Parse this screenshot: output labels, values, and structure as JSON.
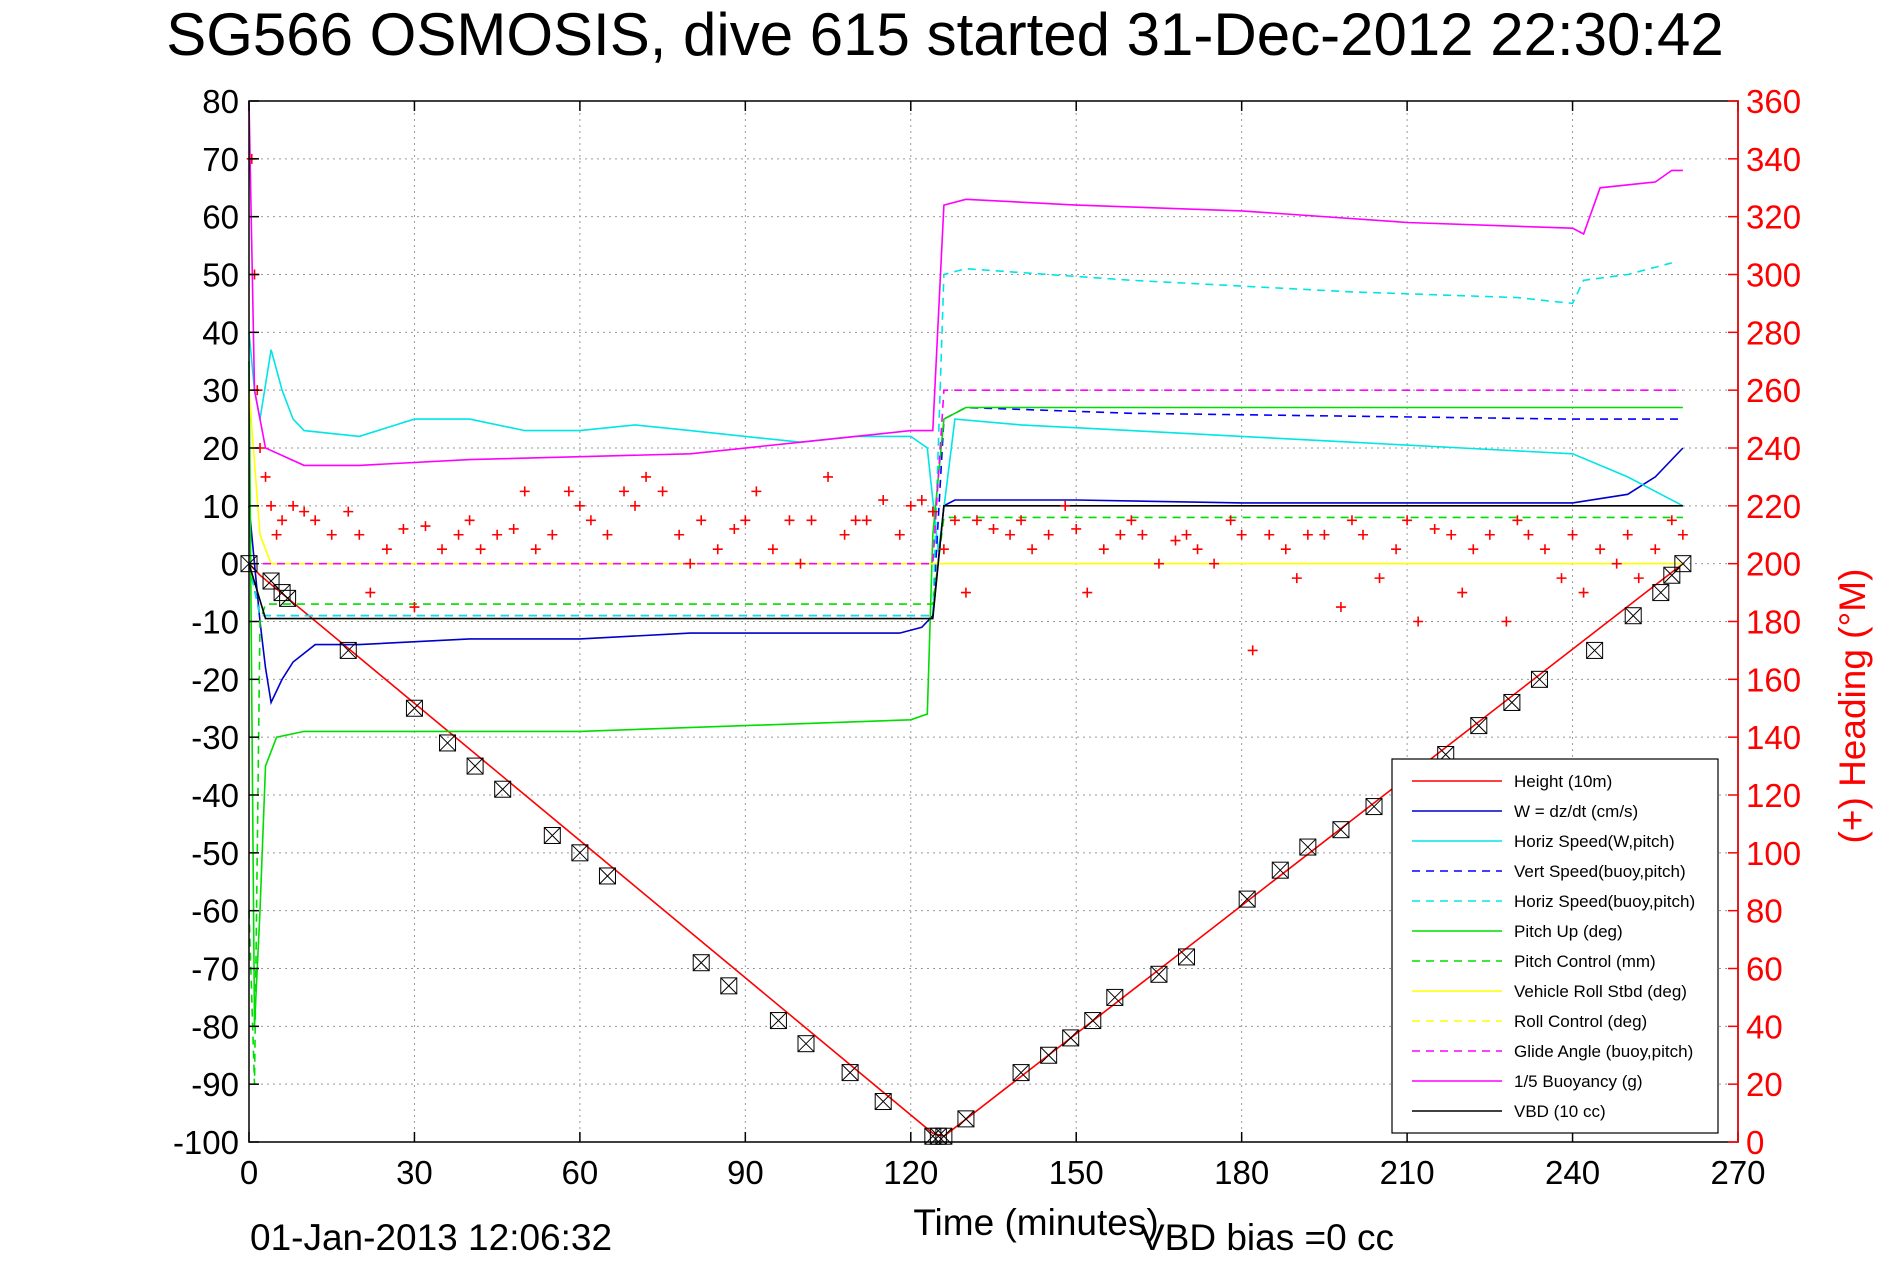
{
  "chart_data": {
    "type": "line",
    "title": "SG566 OSMOSIS, dive 615 started 31-Dec-2012 22:30:42",
    "xlabel": "Time (minutes)",
    "ylabel_right": "(+) Heading (°M)",
    "xlim": [
      0,
      270
    ],
    "ylim": [
      -100,
      80
    ],
    "ylim_right": [
      0,
      360
    ],
    "x_ticks": [
      "0",
      "30",
      "60",
      "90",
      "120",
      "150",
      "180",
      "210",
      "240",
      "270"
    ],
    "y_ticks": [
      "-100",
      "-90",
      "-80",
      "-70",
      "-60",
      "-50",
      "-40",
      "-30",
      "-20",
      "-10",
      "0",
      "10",
      "20",
      "30",
      "40",
      "50",
      "60",
      "70",
      "80"
    ],
    "y_ticks_right": [
      "0",
      "20",
      "40",
      "60",
      "80",
      "100",
      "120",
      "140",
      "160",
      "180",
      "200",
      "220",
      "240",
      "260",
      "280",
      "300",
      "320",
      "340",
      "360"
    ],
    "grid": true,
    "legend_position": "bottom-right",
    "footer_left": "01-Jan-2013 12:06:32",
    "footer_right": "VBD bias =0 cc",
    "series": [
      {
        "name": "Height (10m)",
        "color": "#ff0000",
        "style": "solid",
        "x": [
          0,
          2,
          124,
          126,
          260
        ],
        "y": [
          0,
          -2,
          -98.5,
          -99,
          0
        ]
      },
      {
        "name": "W = dz/dt (cm/s)",
        "color": "#0000cc",
        "style": "solid",
        "x": [
          0,
          1,
          2,
          3,
          4,
          6,
          8,
          12,
          20,
          40,
          60,
          80,
          100,
          110,
          118,
          122,
          124,
          126,
          128,
          135,
          150,
          180,
          210,
          240,
          250,
          255,
          260
        ],
        "y": [
          10,
          0,
          -10,
          -18,
          -24,
          -20,
          -17,
          -14,
          -14,
          -13,
          -13,
          -12,
          -12,
          -12,
          -12,
          -11,
          -9,
          10,
          11,
          11,
          11,
          10.5,
          10.5,
          10.5,
          12,
          15,
          20
        ]
      },
      {
        "name": "Horiz Speed(W,pitch)",
        "color": "#00e5e5",
        "style": "solid",
        "x": [
          0,
          1,
          2,
          4,
          6,
          8,
          10,
          20,
          30,
          40,
          50,
          60,
          70,
          80,
          90,
          100,
          110,
          120,
          123,
          125,
          128,
          140,
          160,
          180,
          200,
          220,
          240,
          250,
          260
        ],
        "y": [
          40,
          30,
          25,
          37,
          30,
          25,
          23,
          22,
          25,
          25,
          23,
          23,
          24,
          23,
          22,
          21,
          22,
          22,
          20,
          2,
          25,
          24,
          23,
          22,
          21,
          20,
          19,
          15,
          10
        ]
      },
      {
        "name": "Vert Speed(buoy,pitch)",
        "color": "#0000ff",
        "style": "dashed",
        "x": [
          0,
          2,
          124,
          126,
          130,
          160,
          200,
          240,
          255,
          260
        ],
        "y": [
          0,
          -9,
          -9,
          25,
          27,
          26,
          25.5,
          25,
          25,
          25
        ]
      },
      {
        "name": "Horiz Speed(buoy,pitch)",
        "color": "#00e5e5",
        "style": "dashed",
        "x": [
          0,
          2,
          124,
          126,
          130,
          160,
          200,
          230,
          240,
          242,
          250,
          258
        ],
        "y": [
          0,
          -9,
          -9,
          50,
          51,
          49,
          47,
          46,
          45,
          49,
          50,
          52
        ]
      },
      {
        "name": "Pitch Up (deg)",
        "color": "#00dd00",
        "style": "solid",
        "x": [
          0,
          1,
          2,
          3,
          5,
          10,
          30,
          60,
          90,
          120,
          123,
          124,
          126,
          130,
          160,
          200,
          240,
          260
        ],
        "y": [
          35,
          -80,
          -60,
          -35,
          -30,
          -29,
          -29,
          -29,
          -28,
          -27,
          -26,
          5,
          25,
          27,
          27,
          27,
          27,
          27
        ]
      },
      {
        "name": "Pitch Control (mm)",
        "color": "#00dd00",
        "style": "dashed",
        "x": [
          0,
          1,
          2,
          3,
          124,
          126,
          260
        ],
        "y": [
          -60,
          -90,
          -10,
          -7,
          -7,
          8,
          8
        ]
      },
      {
        "name": "Vehicle Roll Stbd (deg)",
        "color": "#ffff00",
        "style": "solid",
        "x": [
          0,
          2,
          4,
          30,
          60,
          90,
          120,
          124,
          126,
          160,
          200,
          240,
          260
        ],
        "y": [
          30,
          5,
          0,
          0,
          0,
          0,
          0,
          0,
          0,
          0,
          0,
          0,
          0
        ]
      },
      {
        "name": "Roll Control (deg)",
        "color": "#ffff00",
        "style": "dashed",
        "x": [
          0,
          260
        ],
        "y": [
          0,
          0
        ]
      },
      {
        "name": "Glide Angle (buoy,pitch)",
        "color": "#ff00ff",
        "style": "dashed",
        "x": [
          0,
          124,
          126,
          260
        ],
        "y": [
          0,
          0,
          30,
          30
        ]
      },
      {
        "name": "1/5 Buoyancy (g)",
        "color": "#ff00ff",
        "style": "solid",
        "x": [
          0,
          1,
          3,
          10,
          20,
          40,
          60,
          80,
          100,
          120,
          124,
          126,
          130,
          150,
          180,
          210,
          240,
          242,
          245,
          255,
          258,
          260
        ],
        "y": [
          80,
          30,
          20,
          17,
          17,
          18,
          18.5,
          19,
          21,
          23,
          23,
          62,
          63,
          62,
          61,
          59,
          58,
          57,
          65,
          66,
          68,
          68
        ]
      },
      {
        "name": "VBD (10 cc)",
        "color": "#000000",
        "style": "solid",
        "x": [
          0,
          3,
          124,
          126,
          260
        ],
        "y": [
          0,
          -9.5,
          -9.5,
          10,
          10
        ]
      }
    ],
    "heading_points": {
      "name": "Heading",
      "color": "#ff0000",
      "marker": "+",
      "axis": "right",
      "x": [
        0.5,
        1,
        1.5,
        2,
        3,
        4,
        5,
        6,
        8,
        10,
        12,
        15,
        18,
        20,
        22,
        25,
        28,
        30,
        32,
        35,
        38,
        40,
        42,
        45,
        48,
        50,
        52,
        55,
        58,
        60,
        62,
        65,
        68,
        70,
        72,
        75,
        78,
        80,
        82,
        85,
        88,
        90,
        92,
        95,
        98,
        100,
        102,
        105,
        108,
        110,
        112,
        115,
        118,
        120,
        122,
        124,
        126,
        128,
        130,
        132,
        135,
        138,
        140,
        142,
        145,
        148,
        150,
        152,
        155,
        158,
        160,
        162,
        165,
        168,
        170,
        172,
        175,
        178,
        180,
        182,
        185,
        188,
        190,
        192,
        195,
        198,
        200,
        202,
        205,
        208,
        210,
        212,
        215,
        218,
        220,
        222,
        225,
        228,
        230,
        232,
        235,
        238,
        240,
        242,
        245,
        248,
        250,
        252,
        255,
        258,
        260
      ],
      "y": [
        340,
        300,
        260,
        240,
        230,
        220,
        210,
        215,
        220,
        218,
        215,
        210,
        218,
        210,
        190,
        205,
        212,
        185,
        213,
        205,
        210,
        215,
        205,
        210,
        212,
        225,
        205,
        210,
        225,
        220,
        215,
        210,
        225,
        220,
        230,
        225,
        210,
        200,
        215,
        205,
        212,
        215,
        225,
        205,
        215,
        200,
        215,
        230,
        210,
        215,
        215,
        222,
        210,
        220,
        222,
        218,
        205,
        215,
        190,
        215,
        212,
        210,
        215,
        205,
        210,
        220,
        212,
        190,
        205,
        210,
        215,
        210,
        200,
        208,
        210,
        205,
        200,
        215,
        210,
        170,
        210,
        205,
        195,
        210,
        210,
        185,
        215,
        210,
        195,
        205,
        215,
        180,
        212,
        210,
        190,
        205,
        210,
        180,
        215,
        210,
        205,
        195,
        210,
        190,
        205,
        200,
        210,
        195,
        205,
        215,
        210
      ]
    },
    "waypoint_markers": {
      "marker": "boxed-x",
      "x": [
        0,
        4,
        6,
        7,
        18,
        30,
        36,
        41,
        46,
        55,
        60,
        65,
        82,
        87,
        96,
        101,
        109,
        115,
        124,
        125,
        126,
        130,
        140,
        145,
        149,
        153,
        157,
        165,
        170,
        181,
        187,
        192,
        198,
        204,
        209,
        217,
        223,
        229,
        234,
        244,
        251,
        256,
        258,
        260
      ],
      "y": [
        0,
        -3,
        -5,
        -6,
        -15,
        -25,
        -31,
        -35,
        -39,
        -47,
        -50,
        -54,
        -69,
        -73,
        -79,
        -83,
        -88,
        -93,
        -99,
        -99,
        -99,
        -96,
        -88,
        -85,
        -82,
        -79,
        -75,
        -71,
        -68,
        -58,
        -53,
        -49,
        -46,
        -42,
        -38,
        -33,
        -28,
        -24,
        -20,
        -15,
        -9,
        -5,
        -2,
        0
      ]
    }
  }
}
